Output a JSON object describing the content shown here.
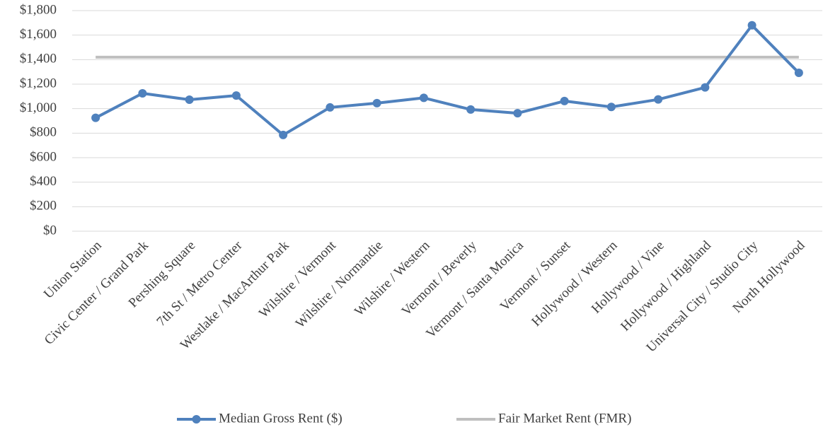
{
  "chart_data": {
    "type": "line",
    "categories": [
      "Union Station",
      "Civic Center / Grand Park",
      "Pershing Square",
      "7th St / Metro Center",
      "Westlake / MacArthur Park",
      "Wilshire / Vermont",
      "Wilshire / Normandie",
      "Wilshire / Western",
      "Vermont / Beverly",
      "Vermont / Santa Monica",
      "Vermont / Sunset",
      "Hollywood / Western",
      "Hollywood / Vine",
      "Hollywood / Highland",
      "Universal City / Studio City",
      "North Hollywood"
    ],
    "series": [
      {
        "name": "Median Gross Rent ($)",
        "color": "#4f81bd",
        "markers": true,
        "values": [
          925,
          1125,
          1073,
          1107,
          785,
          1010,
          1045,
          1088,
          993,
          963,
          1062,
          1014,
          1075,
          1173,
          1680,
          1292
        ]
      },
      {
        "name": "Fair Market Rent (FMR)",
        "color": "#bfbfbf",
        "markers": false,
        "values": [
          1420,
          1420,
          1420,
          1420,
          1420,
          1420,
          1420,
          1420,
          1420,
          1420,
          1420,
          1420,
          1420,
          1420,
          1420,
          1420
        ]
      }
    ],
    "ylim": [
      0,
      1800
    ],
    "yticks": [
      {
        "value": 0,
        "label": "$0"
      },
      {
        "value": 200,
        "label": "$200"
      },
      {
        "value": 400,
        "label": "$400"
      },
      {
        "value": 600,
        "label": "$600"
      },
      {
        "value": 800,
        "label": "$800"
      },
      {
        "value": 1000,
        "label": "$1,000"
      },
      {
        "value": 1200,
        "label": "$1,200"
      },
      {
        "value": 1400,
        "label": "$1,400"
      },
      {
        "value": 1600,
        "label": "$1,600"
      },
      {
        "value": 1800,
        "label": "$1,800"
      }
    ],
    "grid": true,
    "legend": "bottom"
  }
}
